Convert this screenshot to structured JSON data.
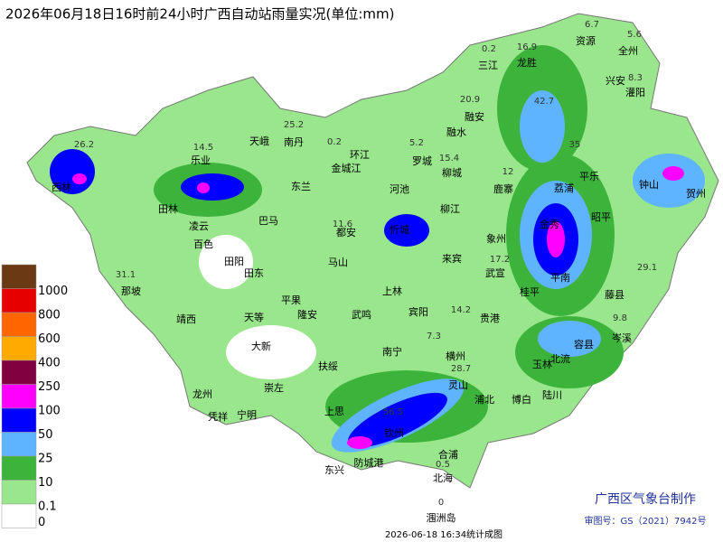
{
  "title": "2026年06月18日16时前24小时广西自动站雨量实况(单位:mm)",
  "legend": {
    "top_color": "#6b3a14",
    "levels": [
      {
        "value": 1000,
        "color": "#e60000"
      },
      {
        "value": 800,
        "color": "#ff6600"
      },
      {
        "value": 600,
        "color": "#ffaa00"
      },
      {
        "value": 400,
        "color": "#800040"
      },
      {
        "value": 250,
        "color": "#ff00ff"
      },
      {
        "value": 100,
        "color": "#0000ff"
      },
      {
        "value": 50,
        "color": "#5fb4ff"
      },
      {
        "value": 25,
        "color": "#3cb43c"
      },
      {
        "value": 10,
        "color": "#99e68c"
      },
      {
        "value": 0.1,
        "color": "#ffffff"
      },
      {
        "value": 0,
        "color": "#ffffff"
      }
    ]
  },
  "cities": [
    "资源",
    "全州",
    "三江",
    "龙胜",
    "兴安",
    "灌阳",
    "融安",
    "融水",
    "天峨",
    "南丹",
    "环江",
    "罗城",
    "金城江",
    "乐业",
    "东兰",
    "河池",
    "柳城",
    "鹿寨",
    "平乐",
    "钟山",
    "贺州",
    "荔浦",
    "西林",
    "田林",
    "凌云",
    "百色",
    "田阳",
    "田东",
    "巴马",
    "都安",
    "忻城",
    "柳江",
    "象州",
    "来宾",
    "武宣",
    "金秀",
    "昭平",
    "马山",
    "上林",
    "宾阳",
    "贵港",
    "桂平",
    "平南",
    "藤县",
    "岑溪",
    "容县",
    "北流",
    "玉林",
    "陆川",
    "博白",
    "灵山",
    "浦北",
    "钦州",
    "防城港",
    "东兴",
    "合浦",
    "北海",
    "涠洲岛",
    "上思",
    "扶绥",
    "南宁",
    "武鸣",
    "隆安",
    "平果",
    "天等",
    "大新",
    "崇左",
    "龙州",
    "凭祥",
    "宁明",
    "那坡",
    "靖西",
    "横州"
  ],
  "rain_values": [
    26.2,
    31.1,
    56.5,
    42.7,
    35,
    29.1,
    0.2,
    16.9,
    20.9,
    25.2,
    14.5,
    0.2,
    5.2,
    15.4,
    11.6,
    9.8,
    6.7,
    5.6,
    8.3,
    12,
    17.2,
    14.2,
    7.3,
    28.7,
    0.5,
    0
  ],
  "footer": {
    "maker": "广西区气象台制作",
    "approval": "审图号：GS（2021）7942号",
    "timestamp": "2026-06-18 16:34统计成图"
  }
}
